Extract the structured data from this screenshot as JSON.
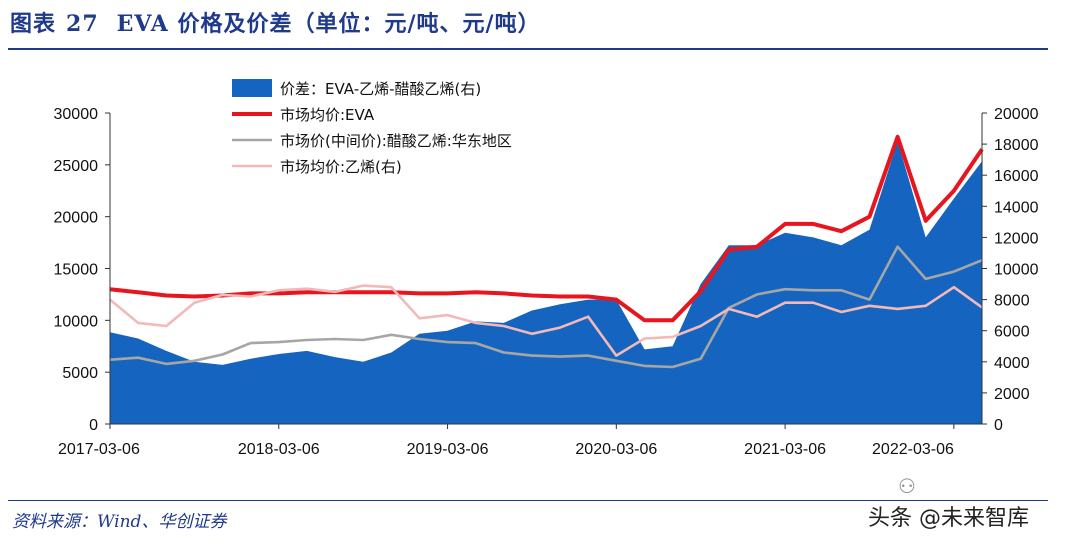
{
  "figure": {
    "label": "图表",
    "number": "27",
    "title": "EVA 价格及价差（单位：元/吨、元/吨）",
    "source": "资料来源：Wind、华创证券",
    "watermark": "头条 @未来智库",
    "watermark_icon": "wechat-icon"
  },
  "chart_data": {
    "type": "area",
    "x_tick_labels": [
      "2017-03-06",
      "2018-03-06",
      "2019-03-06",
      "2020-03-06",
      "2021-03-06",
      "2022-03-06"
    ],
    "x": [
      "2017-03",
      "2017-05",
      "2017-07",
      "2017-09",
      "2017-11",
      "2018-01",
      "2018-03",
      "2018-05",
      "2018-07",
      "2018-09",
      "2018-11",
      "2019-01",
      "2019-03",
      "2019-05",
      "2019-07",
      "2019-09",
      "2019-11",
      "2020-01",
      "2020-03",
      "2020-05",
      "2020-07",
      "2020-09",
      "2020-11",
      "2021-01",
      "2021-03",
      "2021-05",
      "2021-07",
      "2021-09",
      "2021-11",
      "2022-01",
      "2022-03",
      "2022-05"
    ],
    "y_left": {
      "min": 0,
      "max": 30000,
      "ticks": [
        0,
        5000,
        10000,
        15000,
        20000,
        25000,
        30000
      ]
    },
    "y_right": {
      "min": 0,
      "max": 20000,
      "ticks": [
        0,
        2000,
        4000,
        6000,
        8000,
        10000,
        12000,
        14000,
        16000,
        18000,
        20000
      ]
    },
    "legend_placement": "top-left",
    "grid": false,
    "series": [
      {
        "name": "价差：EVA-乙烯-醋酸乙烯(右)",
        "axis": "right",
        "style": "area",
        "color": "#1565c0",
        "values": [
          5900,
          5500,
          4700,
          4000,
          3800,
          4200,
          4500,
          4700,
          4300,
          4000,
          4600,
          5800,
          6000,
          6600,
          6500,
          7300,
          7700,
          8000,
          8000,
          4800,
          5000,
          9000,
          11500,
          11500,
          12300,
          12000,
          11500,
          12500,
          18200,
          12000,
          14500,
          16900
        ]
      },
      {
        "name": "市场均价:EVA",
        "axis": "left",
        "style": "line",
        "color": "#e8141e",
        "values": [
          13000,
          12700,
          12400,
          12300,
          12400,
          12600,
          12600,
          12700,
          12700,
          12700,
          12700,
          12600,
          12600,
          12700,
          12600,
          12400,
          12300,
          12300,
          12000,
          10000,
          10000,
          12800,
          16800,
          17100,
          19300,
          19300,
          18600,
          20000,
          27700,
          19600,
          22500,
          26500
        ]
      },
      {
        "name": "市场价(中间价):醋酸乙烯:华东地区",
        "axis": "left",
        "style": "line",
        "color": "#a6a6a6",
        "values": [
          6200,
          6400,
          5800,
          6100,
          6700,
          7800,
          7900,
          8100,
          8200,
          8100,
          8600,
          8200,
          7900,
          7800,
          6900,
          6600,
          6500,
          6600,
          6100,
          5600,
          5500,
          6300,
          11200,
          12500,
          13000,
          12900,
          12900,
          12000,
          17100,
          14000,
          14700,
          15800
        ]
      },
      {
        "name": "市场均价:乙烯(右)",
        "axis": "right",
        "style": "line",
        "color": "#f2b9b9",
        "values": [
          8000,
          6500,
          6300,
          7800,
          8300,
          8200,
          8600,
          8700,
          8500,
          8900,
          8800,
          6800,
          7000,
          6500,
          6300,
          5800,
          6200,
          6900,
          4400,
          5500,
          5600,
          6300,
          7400,
          6900,
          7800,
          7800,
          7200,
          7600,
          7400,
          7600,
          8800,
          7500
        ]
      }
    ]
  }
}
